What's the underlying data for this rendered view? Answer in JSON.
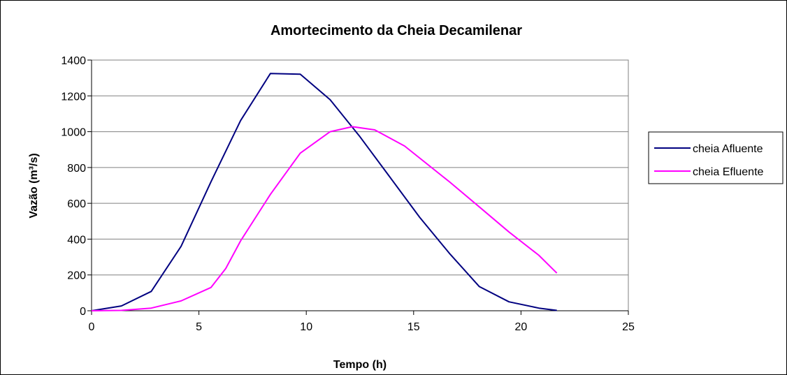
{
  "chart_data": {
    "type": "line",
    "title": "Amortecimento da Cheia Decamilenar",
    "xlabel": "Tempo (h)",
    "ylabel": "Vazão (m³/s)",
    "xlim": [
      0,
      25
    ],
    "ylim": [
      0,
      1400
    ],
    "xticks": [
      0,
      5,
      10,
      15,
      20,
      25
    ],
    "yticks": [
      0,
      200,
      400,
      600,
      800,
      1000,
      1200,
      1400
    ],
    "grid": "horizontal",
    "legend_position": "right",
    "series": [
      {
        "name": "cheia Afluente",
        "color": "#000080",
        "points": [
          [
            0,
            0
          ],
          [
            1.39,
            27
          ],
          [
            2.78,
            108
          ],
          [
            4.17,
            360
          ],
          [
            5.56,
            720
          ],
          [
            6.94,
            1062
          ],
          [
            8.33,
            1325
          ],
          [
            9.72,
            1321
          ],
          [
            11.11,
            1179
          ],
          [
            12.5,
            972
          ],
          [
            13.89,
            747
          ],
          [
            15.28,
            522
          ],
          [
            16.67,
            320
          ],
          [
            18.06,
            135
          ],
          [
            19.44,
            50
          ],
          [
            20.83,
            15
          ],
          [
            21.67,
            2
          ]
        ]
      },
      {
        "name": "cheia Efluente",
        "color": "#FF00FF",
        "points": [
          [
            0,
            0
          ],
          [
            1.39,
            2
          ],
          [
            2.78,
            15
          ],
          [
            4.17,
            55
          ],
          [
            5.56,
            130
          ],
          [
            6.25,
            236
          ],
          [
            6.94,
            390
          ],
          [
            8.33,
            650
          ],
          [
            9.72,
            880
          ],
          [
            11.11,
            1000
          ],
          [
            12.15,
            1028
          ],
          [
            13.19,
            1010
          ],
          [
            14.58,
            920
          ],
          [
            16.67,
            720
          ],
          [
            18.06,
            580
          ],
          [
            19.44,
            440
          ],
          [
            20.83,
            310
          ],
          [
            21.67,
            210
          ]
        ]
      }
    ]
  }
}
